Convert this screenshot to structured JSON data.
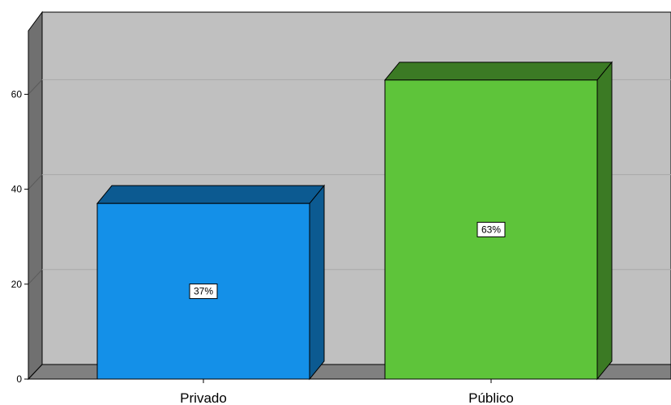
{
  "chart_data": {
    "type": "bar",
    "three_d": true,
    "categories": [
      "Privado",
      "Público"
    ],
    "values": [
      37,
      63
    ],
    "data_labels": [
      "37%",
      "63%"
    ],
    "y_ticks": [
      "0",
      "20",
      "40",
      "60"
    ],
    "ylim": [
      0,
      70
    ],
    "grid": true,
    "legend": "none",
    "colors": {
      "bars": [
        "#1490E8",
        "#5EC43A"
      ],
      "bar_tops": [
        "#0C5A91",
        "#3B7A24"
      ],
      "bar_sides": [
        "#0C5A91",
        "#3B7A24"
      ],
      "back_wall": "#C0C0C0",
      "left_wall": "#707070",
      "floor": "#808080",
      "gridline": "#A8A8A8"
    }
  }
}
